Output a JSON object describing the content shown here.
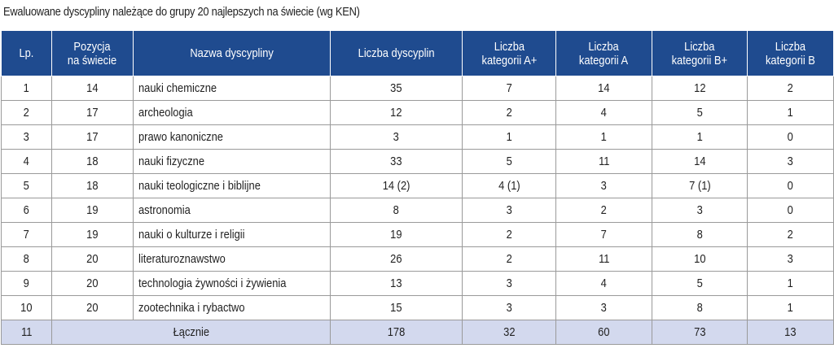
{
  "caption": "Ewaluowane dyscypliny należące do grupy 20 najlepszych na świecie (wg KEN)",
  "headers": {
    "lp": "Lp.",
    "pozycja_1": "Pozycja",
    "pozycja_2": "na świecie",
    "nazwa": "Nazwa dyscypliny",
    "liczba": "Liczba dyscyplin",
    "kat_aplus_1": "Liczba",
    "kat_aplus_2": "kategorii A+",
    "kat_a_1": "Liczba",
    "kat_a_2": "kategorii A",
    "kat_bplus_1": "Liczba",
    "kat_bplus_2": "kategorii B+",
    "kat_b_1": "Liczba",
    "kat_b_2": "kategorii B"
  },
  "rows": [
    [
      "1",
      "14",
      "nauki chemiczne",
      "35",
      "7",
      "14",
      "12",
      "2"
    ],
    [
      "2",
      "17",
      "archeologia",
      "12",
      "2",
      "4",
      "5",
      "1"
    ],
    [
      "3",
      "17",
      "prawo kanoniczne",
      "3",
      "1",
      "1",
      "1",
      "0"
    ],
    [
      "4",
      "18",
      "nauki fizyczne",
      "33",
      "5",
      "11",
      "14",
      "3"
    ],
    [
      "5",
      "18",
      "nauki teologiczne i biblijne",
      "14 (2)",
      "4 (1)",
      "3",
      "7 (1)",
      "0"
    ],
    [
      "6",
      "19",
      "astronomia",
      "8",
      "3",
      "2",
      "3",
      "0"
    ],
    [
      "7",
      "19",
      "nauki o kulturze i religii",
      "19",
      "2",
      "7",
      "8",
      "2"
    ],
    [
      "8",
      "20",
      "literaturoznawstwo",
      "26",
      "2",
      "11",
      "10",
      "3"
    ],
    [
      "9",
      "20",
      "technologia żywności i żywienia",
      "13",
      "3",
      "4",
      "5",
      "1"
    ],
    [
      "10",
      "20",
      "zootechnika i rybactwo",
      "15",
      "3",
      "3",
      "8",
      "1"
    ]
  ],
  "total": {
    "lp": "11",
    "label": "Łącznie",
    "liczba": "178",
    "kat_aplus": "32",
    "kat_a": "60",
    "kat_bplus": "73",
    "kat_b": "13"
  }
}
